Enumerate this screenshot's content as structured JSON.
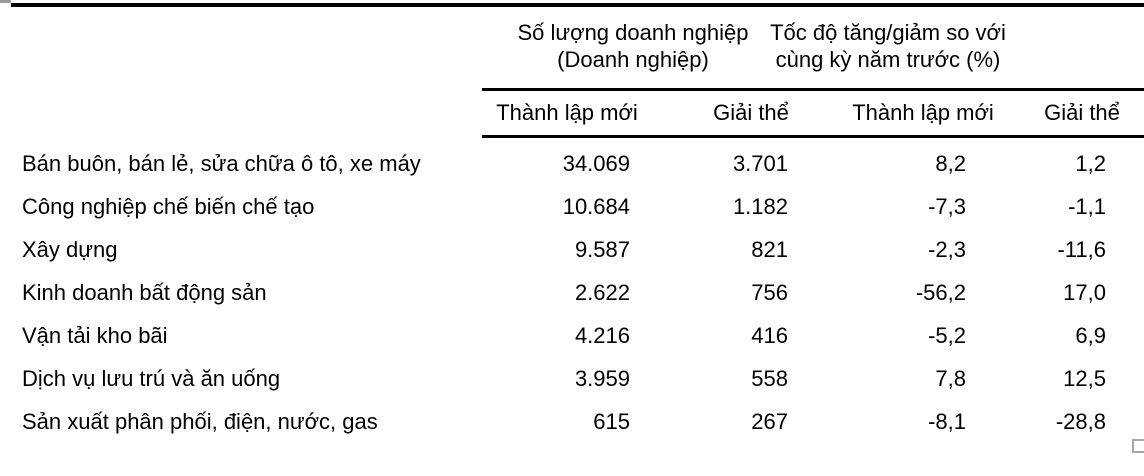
{
  "table": {
    "group_headers": [
      {
        "line1": "Số lượng doanh nghiệp",
        "line2": "(Doanh nghiệp)"
      },
      {
        "line1": "Tốc độ tăng/giảm so với",
        "line2": "cùng kỳ năm trước (%)"
      }
    ],
    "sub_headers": [
      "Thành lập mới",
      "Giải thể",
      "Thành lập mới",
      "Giải thể"
    ],
    "rows": [
      {
        "label": "Bán buôn, bán lẻ, sửa chữa ô tô, xe máy",
        "new_count": "34.069",
        "dissolved_count": "3.701",
        "new_pct": "8,2",
        "dissolved_pct": "1,2"
      },
      {
        "label": "Công nghiệp chế biến chế tạo",
        "new_count": "10.684",
        "dissolved_count": "1.182",
        "new_pct": "-7,3",
        "dissolved_pct": "-1,1"
      },
      {
        "label": "Xây dựng",
        "new_count": "9.587",
        "dissolved_count": "821",
        "new_pct": "-2,3",
        "dissolved_pct": "-11,6"
      },
      {
        "label": "Kinh doanh bất động sản",
        "new_count": "2.622",
        "dissolved_count": "756",
        "new_pct": "-56,2",
        "dissolved_pct": "17,0"
      },
      {
        "label": "Vận tải kho bãi",
        "new_count": "4.216",
        "dissolved_count": "416",
        "new_pct": "-5,2",
        "dissolved_pct": "6,9"
      },
      {
        "label": "Dịch vụ lưu trú và ăn uống",
        "new_count": "3.959",
        "dissolved_count": "558",
        "new_pct": "7,8",
        "dissolved_pct": "12,5"
      },
      {
        "label": "Sản xuất phân phối, điện, nước, gas",
        "new_count": "615",
        "dissolved_count": "267",
        "new_pct": "-8,1",
        "dissolved_pct": "-28,8"
      }
    ]
  },
  "chart_data": {
    "type": "table",
    "column_groups": [
      "Số lượng doanh nghiệp (Doanh nghiệp)",
      "Tốc độ tăng/giảm so với cùng kỳ năm trước (%)"
    ],
    "columns": [
      "Thành lập mới",
      "Giải thể",
      "Thành lập mới",
      "Giải thể"
    ],
    "categories": [
      "Bán buôn, bán lẻ, sửa chữa ô tô, xe máy",
      "Công nghiệp chế biến chế tạo",
      "Xây dựng",
      "Kinh doanh bất động sản",
      "Vận tải kho bãi",
      "Dịch vụ lưu trú và ăn uống",
      "Sản xuất phân phối, điện, nước, gas"
    ],
    "series": [
      {
        "name": "Thành lập mới (Doanh nghiệp)",
        "values": [
          34069,
          10684,
          9587,
          2622,
          4216,
          3959,
          615
        ]
      },
      {
        "name": "Giải thể (Doanh nghiệp)",
        "values": [
          3701,
          1182,
          821,
          756,
          416,
          558,
          267
        ]
      },
      {
        "name": "Thành lập mới (%)",
        "values": [
          8.2,
          -7.3,
          -2.3,
          -56.2,
          -5.2,
          7.8,
          -8.1
        ]
      },
      {
        "name": "Giải thể (%)",
        "values": [
          1.2,
          -1.1,
          -11.6,
          17.0,
          6.9,
          12.5,
          -28.8
        ]
      }
    ]
  },
  "colors": {
    "background": "#ffffff",
    "text": "#000000",
    "rule": "#000000",
    "artifact_gray": "#a8a8a8"
  }
}
